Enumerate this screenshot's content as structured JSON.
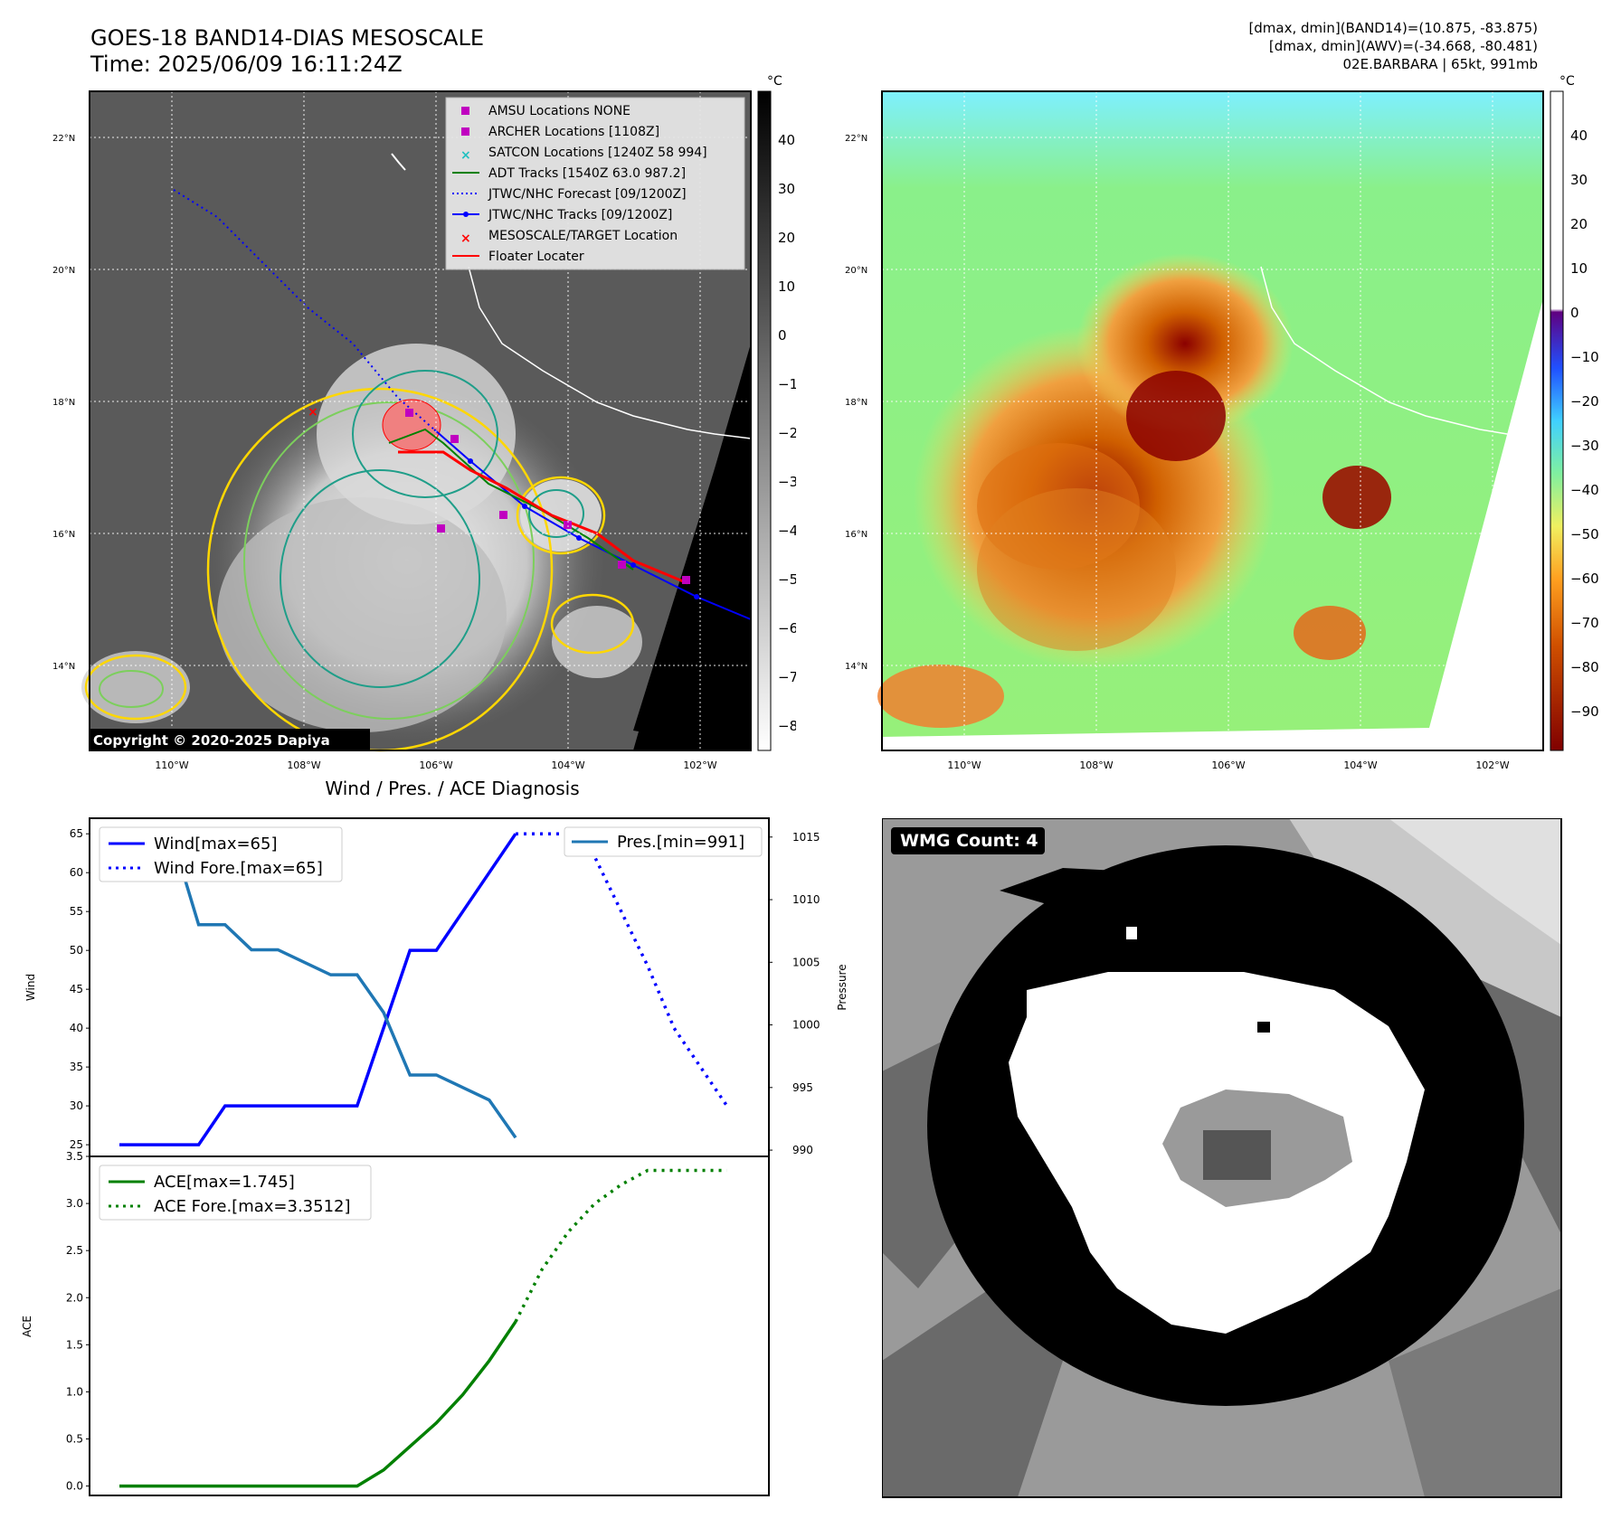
{
  "header": {
    "title_line1": "GOES-18 BAND14-DIAS MESOSCALE",
    "title_line2": "Time: 2025/06/09 16:11:24Z",
    "info_line1": "[dmax, dmin](BAND14)=(10.875, -83.875)",
    "info_line2": "[dmax, dmin](AWV)=(-34.668, -80.481)",
    "info_line3": "02E.BARBARA | 65kt, 991mb"
  },
  "maps": {
    "lat_ticks": [
      "22°N",
      "20°N",
      "18°N",
      "16°N",
      "14°N"
    ],
    "lon_ticks": [
      "110°W",
      "108°W",
      "106°W",
      "104°W",
      "102°W"
    ],
    "cbar_unit": "°C",
    "cbar1_ticks": [
      "40",
      "30",
      "20",
      "10",
      "0",
      "−10",
      "−20",
      "−30",
      "−40",
      "−50",
      "−60",
      "−70",
      "−80"
    ],
    "cbar2_ticks": [
      "40",
      "30",
      "20",
      "10",
      "0",
      "−10",
      "−20",
      "−30",
      "−40",
      "−50",
      "−60",
      "−70",
      "−80",
      "−90"
    ],
    "copyright": "Copyright © 2020-2025 Dapiya",
    "legend": [
      {
        "label": "AMSU Locations NONE",
        "color": "#c000c0",
        "marker": "square"
      },
      {
        "label": "ARCHER Locations [1108Z]",
        "color": "#c000c0",
        "marker": "square"
      },
      {
        "label": "SATCON Locations [1240Z 58 994]",
        "color": "#20c0c0",
        "marker": "x"
      },
      {
        "label": "ADT Tracks [1540Z 63.0 987.2]",
        "color": "#008000",
        "marker": "line"
      },
      {
        "label": "JTWC/NHC Forecast [09/1200Z]",
        "color": "#0000ff",
        "marker": "dotted"
      },
      {
        "label": "JTWC/NHC Tracks [09/1200Z]",
        "color": "#0000ff",
        "marker": "linedot"
      },
      {
        "label": "MESOSCALE/TARGET Location",
        "color": "#ff0000",
        "marker": "x"
      },
      {
        "label": "Floater Locater",
        "color": "#ff0000",
        "marker": "line"
      }
    ]
  },
  "diagnosis": {
    "title": "Wind / Pres. / ACE Diagnosis",
    "wind_axis_label": "Wind",
    "pressure_axis_label": "Pressure",
    "ace_axis_label": "ACE",
    "wind_legend": "Wind[max=65]",
    "wind_fore_legend": "Wind Fore.[max=65]",
    "pres_legend": "Pres.[min=991]",
    "ace_legend": "ACE[max=1.745]",
    "ace_fore_legend": "ACE Fore.[max=3.3512]"
  },
  "wmg": {
    "label": "WMG Count: 4"
  },
  "chart_data": [
    {
      "type": "line",
      "name": "wind_pressure",
      "x": [
        0,
        1,
        2,
        3,
        4,
        5,
        6,
        7,
        8,
        9,
        10,
        11,
        12,
        13,
        14,
        15,
        16
      ],
      "series": [
        {
          "name": "Wind[max=65]",
          "color": "#0000ff",
          "values": [
            25,
            25,
            25,
            25,
            30,
            30,
            30,
            30,
            30,
            30,
            40,
            50,
            50,
            55,
            60,
            65,
            null
          ]
        },
        {
          "name": "Wind Fore.[max=65]",
          "color": "#0000ff",
          "style": "dotted",
          "x": [
            15,
            16,
            17,
            18,
            19,
            20,
            21,
            22,
            23
          ],
          "values": [
            65,
            65,
            65,
            62,
            55,
            48,
            40,
            35,
            30
          ]
        },
        {
          "name": "Pres.[min=991]",
          "color": "#1f77b4",
          "axis": "right",
          "values": [
            1015,
            1015,
            1015,
            1008,
            1008,
            1006,
            1006,
            1005,
            1004,
            1004,
            1001,
            996,
            996,
            995,
            994,
            991,
            null
          ]
        }
      ],
      "wind_ticks": [
        25,
        30,
        35,
        40,
        45,
        50,
        55,
        60,
        65
      ],
      "pressure_ticks": [
        990,
        995,
        1000,
        1005,
        1010,
        1015
      ],
      "ylim_wind": [
        23.5,
        67
      ],
      "ylim_pressure": [
        989.5,
        1016.5
      ]
    },
    {
      "type": "line",
      "name": "ace",
      "series": [
        {
          "name": "ACE[max=1.745]",
          "color": "#008000",
          "x": [
            0,
            1,
            2,
            3,
            4,
            5,
            6,
            7,
            8,
            9,
            10,
            11,
            12,
            13,
            14,
            15
          ],
          "values": [
            0,
            0,
            0,
            0,
            0,
            0,
            0,
            0,
            0,
            0,
            0.17,
            0.42,
            0.67,
            0.97,
            1.33,
            1.745
          ]
        },
        {
          "name": "ACE Fore.[max=3.3512]",
          "color": "#008000",
          "style": "dotted",
          "x": [
            15,
            16,
            17,
            18,
            19,
            20,
            21,
            22,
            23
          ],
          "values": [
            1.745,
            2.3,
            2.7,
            3.0,
            3.2,
            3.3512,
            3.3512,
            3.3512,
            3.3512
          ]
        }
      ],
      "ace_ticks": [
        0.0,
        0.5,
        1.0,
        1.5,
        2.0,
        2.5,
        3.0,
        3.5
      ],
      "ace_tick_labels": [
        "0.0",
        "0.5",
        "1.0",
        "1.5",
        "2.0",
        "2.5",
        "3.0",
        "3.5"
      ],
      "ylim": [
        -0.1,
        3.5
      ]
    }
  ]
}
